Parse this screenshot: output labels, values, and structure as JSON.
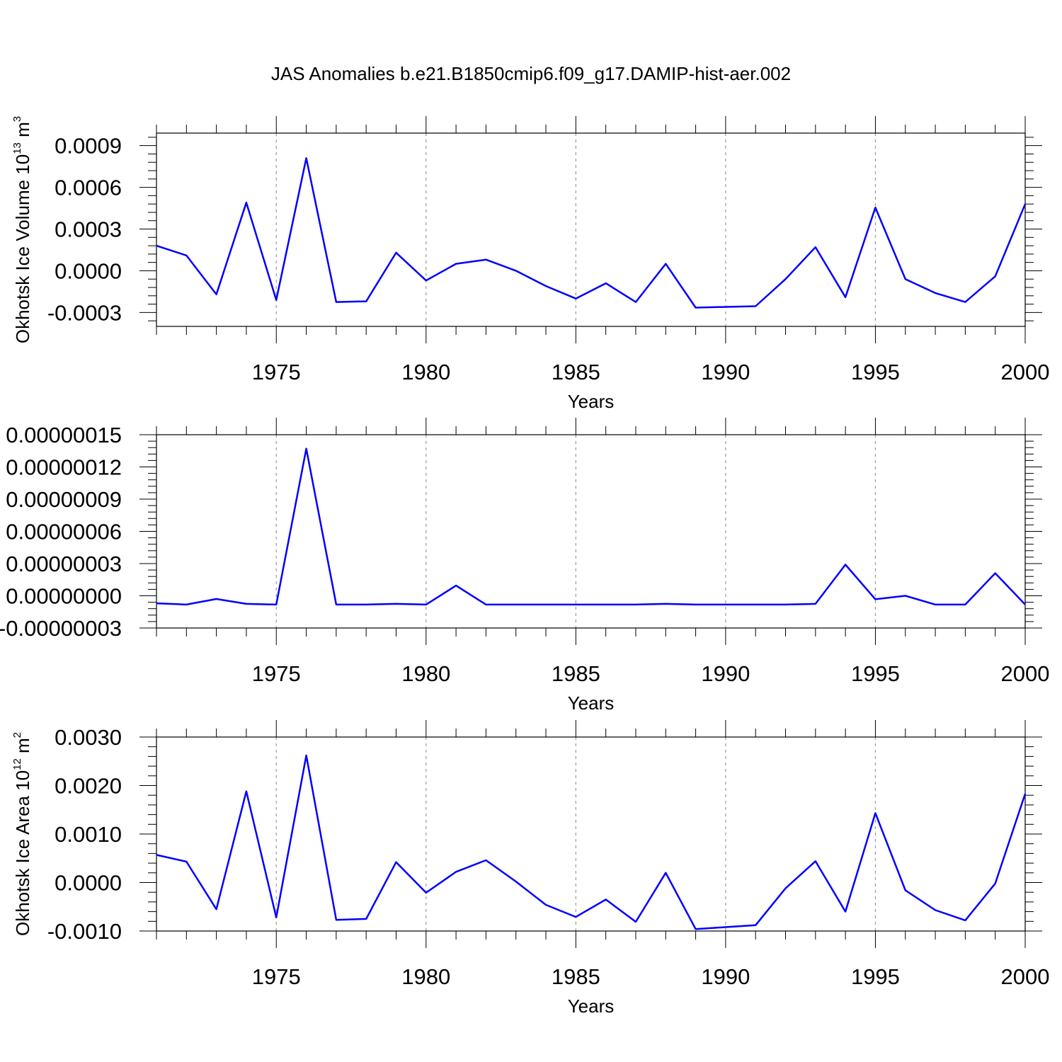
{
  "title": "JAS Anomalies b.e21.B1850cmip6.f09_g17.DAMIP-hist-aer.002",
  "colors": {
    "line": "#0000ff",
    "axis": "#000000",
    "grid": "#999999"
  },
  "chart_data": [
    {
      "type": "line",
      "ylabel": {
        "main": "Okhotsk Ice Volume 10",
        "sup": "13",
        "unit": " m",
        "unit_sup": "3"
      },
      "xlabel": "Years",
      "xlim": [
        1971,
        2000
      ],
      "ylim": [
        -0.0004,
        0.00099
      ],
      "yticks": [
        -0.0003,
        0.0,
        0.0003,
        0.0006,
        0.0009
      ],
      "ytick_labels": [
        "-0.0003",
        "0.0000",
        "0.0003",
        "0.0006",
        "0.0009"
      ],
      "xticks": [
        1975,
        1980,
        1985,
        1990,
        1995,
        2000
      ],
      "xtick_labels": [
        "1975",
        "1980",
        "1985",
        "1990",
        "1995",
        "2000"
      ],
      "grid": "vertical dashed at major x ticks",
      "x": [
        1971,
        1972,
        1973,
        1974,
        1975,
        1976,
        1977,
        1978,
        1979,
        1980,
        1981,
        1982,
        1983,
        1984,
        1985,
        1986,
        1987,
        1988,
        1989,
        1990,
        1991,
        1992,
        1993,
        1994,
        1995,
        1996,
        1997,
        1998,
        1999,
        2000
      ],
      "values": [
        0.00018,
        0.00011,
        -0.00017,
        0.00049,
        -0.00021,
        0.00081,
        -0.000225,
        -0.00022,
        0.00013,
        -7e-05,
        5e-05,
        8e-05,
        0.0,
        -0.00011,
        -0.0002,
        -9e-05,
        -0.000225,
        5e-05,
        -0.000265,
        -0.00026,
        -0.000255,
        -6e-05,
        0.00017,
        -0.00019,
        0.000455,
        -6e-05,
        -0.00016,
        -0.000225,
        -4e-05,
        0.00048
      ]
    },
    {
      "type": "line",
      "ylabel": null,
      "xlabel": "Years",
      "xlim": [
        1971,
        2000
      ],
      "ylim": [
        -3e-08,
        1.5e-07
      ],
      "yticks": [
        -3e-08,
        0.0,
        3e-08,
        6e-08,
        9e-08,
        1.2e-07,
        1.5e-07
      ],
      "ytick_labels": [
        "-0.00000003",
        "0.00000000",
        "0.00000003",
        "0.00000006",
        "0.00000009",
        "0.00000012",
        "0.00000015"
      ],
      "xticks": [
        1975,
        1980,
        1985,
        1990,
        1995,
        2000
      ],
      "xtick_labels": [
        "1975",
        "1980",
        "1985",
        "1990",
        "1995",
        "2000"
      ],
      "grid": "vertical dashed at major x ticks",
      "x": [
        1971,
        1972,
        1973,
        1974,
        1975,
        1976,
        1977,
        1978,
        1979,
        1980,
        1981,
        1982,
        1983,
        1984,
        1985,
        1986,
        1987,
        1988,
        1989,
        1990,
        1991,
        1992,
        1993,
        1994,
        1995,
        1996,
        1997,
        1998,
        1999,
        2000
      ],
      "values": [
        -7e-09,
        -8.2e-09,
        -3e-09,
        -7.5e-09,
        -8.2e-09,
        1.37e-07,
        -8.2e-09,
        -8.2e-09,
        -7.5e-09,
        -8.2e-09,
        9.5e-09,
        -8.2e-09,
        -8.2e-09,
        -8.2e-09,
        -8.2e-09,
        -8.2e-09,
        -8.2e-09,
        -7.5e-09,
        -8.2e-09,
        -8.2e-09,
        -8.2e-09,
        -8.2e-09,
        -7.5e-09,
        2.9e-08,
        -3.2e-09,
        0.0,
        -8.2e-09,
        -8.2e-09,
        2.1e-08,
        -8.2e-09
      ]
    },
    {
      "type": "line",
      "ylabel": {
        "main": "Okhotsk Ice Area 10",
        "sup": "12",
        "unit": " m",
        "unit_sup": "2"
      },
      "xlabel": "Years",
      "xlim": [
        1971,
        2000
      ],
      "ylim": [
        -0.001,
        0.003
      ],
      "yticks": [
        -0.001,
        0.0,
        0.001,
        0.002,
        0.003
      ],
      "ytick_labels": [
        "-0.0010",
        "0.0000",
        "0.0010",
        "0.0020",
        "0.0030"
      ],
      "xticks": [
        1975,
        1980,
        1985,
        1990,
        1995,
        2000
      ],
      "xtick_labels": [
        "1975",
        "1980",
        "1985",
        "1990",
        "1995",
        "2000"
      ],
      "grid": "vertical dashed at major x ticks",
      "x": [
        1971,
        1972,
        1973,
        1974,
        1975,
        1976,
        1977,
        1978,
        1979,
        1980,
        1981,
        1982,
        1983,
        1984,
        1985,
        1986,
        1987,
        1988,
        1989,
        1990,
        1991,
        1992,
        1993,
        1994,
        1995,
        1996,
        1997,
        1998,
        1999,
        2000
      ],
      "values": [
        0.00057,
        0.00043,
        -0.00055,
        0.00188,
        -0.00072,
        0.00262,
        -0.00077,
        -0.00075,
        0.00042,
        -0.00021,
        0.00022,
        0.00046,
        2e-05,
        -0.00046,
        -0.00071,
        -0.00035,
        -0.00081,
        0.0002,
        -0.00096,
        -0.00092,
        -0.00088,
        -0.00012,
        0.00044,
        -0.0006,
        0.00143,
        -0.00016,
        -0.00057,
        -0.00078,
        -2e-05,
        0.00183
      ]
    }
  ]
}
